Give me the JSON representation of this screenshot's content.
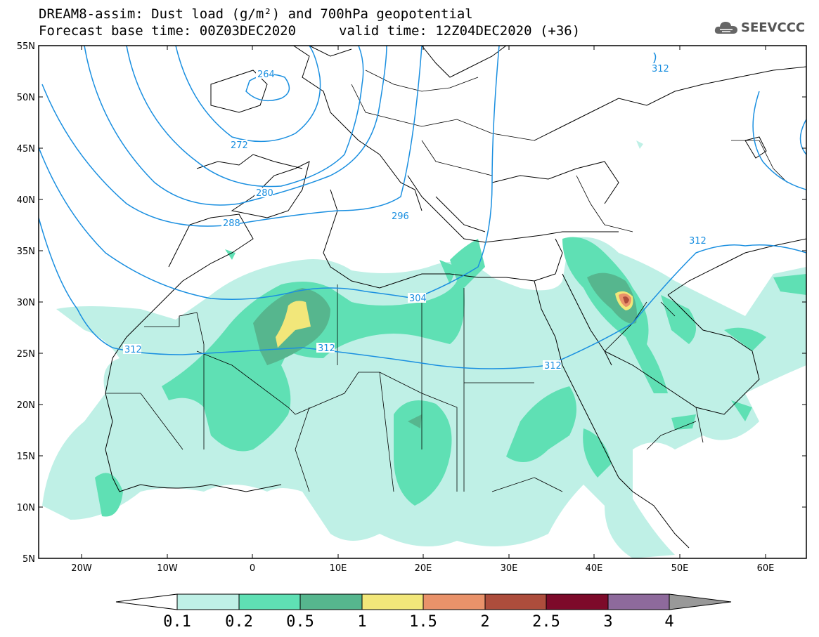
{
  "header": {
    "title_line1": "DREAM8-assim: Dust load (g/m²) and 700hPa geopotential",
    "title_line2": "Forecast base time: 00Z03DEC2020",
    "title_line2b": "valid time: 12Z04DEC2020 (+36)"
  },
  "logo": {
    "text": "SEEVCCC",
    "icon": "cloud-icon"
  },
  "map": {
    "lat_labels": [
      "55N",
      "50N",
      "45N",
      "40N",
      "35N",
      "30N",
      "25N",
      "20N",
      "15N",
      "10N",
      "5N"
    ],
    "lon_labels": [
      "20W",
      "10W",
      "0",
      "10E",
      "20E",
      "30E",
      "40E",
      "50E",
      "60E"
    ],
    "contour_color": "#1a8fe0",
    "contour_labels": [
      "264",
      "272",
      "280",
      "288",
      "296",
      "304",
      "312",
      "312",
      "312",
      "312",
      "312"
    ]
  },
  "colorbar": {
    "labels": [
      "0.1",
      "0.2",
      "0.5",
      "1",
      "1.5",
      "2",
      "2.5",
      "3",
      "4"
    ],
    "colors": [
      "#bff0e6",
      "#5fe0b4",
      "#56b68e",
      "#f2e77a",
      "#e9926a",
      "#ad4d3c",
      "#7d0a2a",
      "#8e6a9c",
      "#999999"
    ]
  },
  "dust_colors": {
    "light": "#bff0e6",
    "medium": "#5fe0b4",
    "dark": "#56b68e",
    "yellow": "#f2e77a",
    "orange": "#e9926a",
    "red": "#ad4d3c"
  }
}
